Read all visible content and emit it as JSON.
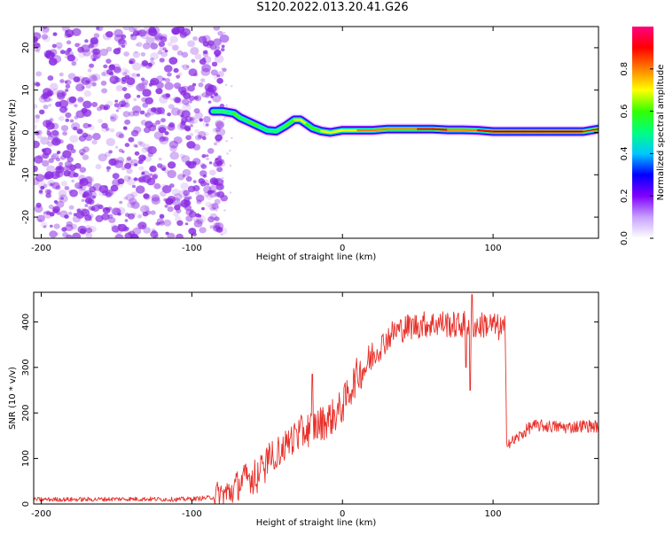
{
  "title": "S120.2022.013.20.41.G26",
  "colors": {
    "snr_line": "#e8302a",
    "axis": "#000000",
    "noise": "#8a2be2",
    "colormap": [
      "#ffffff",
      "#a000ff",
      "#0000ff",
      "#00c8ff",
      "#00ff80",
      "#33ff00",
      "#ffff00",
      "#ff8000",
      "#ff0000",
      "#ff0080"
    ]
  },
  "chart_data": [
    {
      "type": "heatmap",
      "title": "S120.2022.013.20.41.G26",
      "xlabel": "Height of straight line (km)",
      "ylabel": "Frequency (Hz)",
      "xlim": [
        -205,
        170
      ],
      "ylim": [
        -25,
        25
      ],
      "xticks": [
        "-200",
        "-100",
        "0",
        "100"
      ],
      "yticks": [
        "-20",
        "-10",
        "0",
        "10",
        "20"
      ],
      "colorbar": {
        "label": "Normalized spectral amplitude",
        "range": [
          0.0,
          1.0
        ],
        "ticks": [
          "0.0",
          "0.2",
          "0.4",
          "0.6",
          "0.8"
        ]
      },
      "noise_region_x": [
        -205,
        -85
      ],
      "ridge": {
        "x": [
          -86,
          -80,
          -72,
          -68,
          -62,
          -56,
          -50,
          -44,
          -38,
          -32,
          -28,
          -24,
          -20,
          -14,
          -8,
          0,
          10,
          20,
          30,
          40,
          50,
          60,
          70,
          80,
          90,
          100,
          110,
          120,
          130,
          140,
          150,
          160,
          170
        ],
        "freq": [
          5,
          5,
          4.5,
          3.5,
          2.5,
          1.5,
          0.5,
          0.3,
          1.5,
          3,
          3,
          2,
          1,
          0.3,
          0,
          0.5,
          0.5,
          0.5,
          0.8,
          0.8,
          0.8,
          0.8,
          0.6,
          0.6,
          0.5,
          0.2,
          0.2,
          0.2,
          0.2,
          0.2,
          0.2,
          0.2,
          0.8
        ],
        "amplitude": [
          0.45,
          0.5,
          0.6,
          0.55,
          0.55,
          0.6,
          0.5,
          0.5,
          0.6,
          0.7,
          0.75,
          0.6,
          0.6,
          0.65,
          0.7,
          0.75,
          0.8,
          0.85,
          0.85,
          0.85,
          0.9,
          0.9,
          0.9,
          0.85,
          0.85,
          0.95,
          0.95,
          0.95,
          0.95,
          0.95,
          0.95,
          0.9,
          0.7
        ]
      }
    },
    {
      "type": "line",
      "xlabel": "Height of straight line (km)",
      "ylabel": "SNR (10 * v/v)",
      "xlim": [
        -205,
        170
      ],
      "ylim": [
        0,
        465
      ],
      "xticks": [
        "-200",
        "-100",
        "0",
        "100"
      ],
      "yticks": [
        "0",
        "100",
        "200",
        "300",
        "400"
      ],
      "series": [
        {
          "x": [
            -205,
            -190,
            -170,
            -150,
            -130,
            -110,
            -95,
            -85,
            -75,
            -70,
            -65,
            -60,
            -55,
            -50,
            -45,
            -40,
            -35,
            -30,
            -25,
            -20,
            -15,
            -10,
            -5,
            0,
            5,
            10,
            15,
            20,
            25,
            30,
            35,
            40,
            45,
            50,
            55,
            60,
            65,
            70,
            75,
            80,
            85,
            90,
            95,
            100,
            105,
            108,
            109,
            112,
            118,
            125,
            130,
            140,
            150,
            160,
            170
          ],
          "y": [
            10,
            10,
            10,
            11,
            11,
            10,
            12,
            15,
            25,
            40,
            55,
            60,
            70,
            95,
            110,
            120,
            140,
            150,
            160,
            170,
            175,
            185,
            195,
            215,
            250,
            285,
            300,
            325,
            345,
            365,
            380,
            385,
            390,
            392,
            395,
            395,
            398,
            395,
            392,
            395,
            395,
            390,
            395,
            392,
            385,
            385,
            140,
            135,
            150,
            170,
            172,
            170,
            168,
            172,
            170
          ]
        }
      ],
      "spikes": [
        {
          "x": -20,
          "y": 285
        },
        {
          "x": 82,
          "y": 300
        },
        {
          "x": 85,
          "y": 250
        },
        {
          "x": 86,
          "y": 460
        }
      ]
    }
  ]
}
